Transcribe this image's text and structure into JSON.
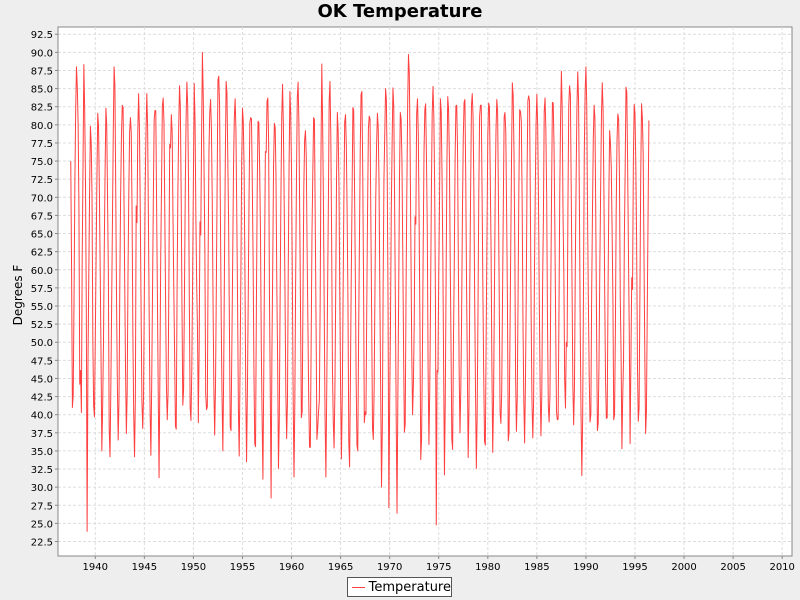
{
  "chart_data": {
    "type": "line",
    "title": "OK Temperature",
    "xlabel": "",
    "ylabel": "Degrees F",
    "xlim": [
      1936.2,
      2011
    ],
    "ylim": [
      20.5,
      93.5
    ],
    "x_ticks": [
      "1940",
      "1945",
      "1950",
      "1955",
      "1960",
      "1965",
      "1970",
      "1975",
      "1980",
      "1985",
      "1990",
      "1995",
      "2000",
      "2005",
      "2010"
    ],
    "y_ticks": [
      "22.5",
      "25.0",
      "27.5",
      "30.0",
      "32.5",
      "35.0",
      "37.5",
      "40.0",
      "42.5",
      "45.0",
      "47.5",
      "50.0",
      "52.5",
      "55.0",
      "57.5",
      "60.0",
      "62.5",
      "65.0",
      "67.5",
      "70.0",
      "72.5",
      "75.0",
      "77.5",
      "80.0",
      "82.5",
      "85.0",
      "87.5",
      "90.0",
      "92.5"
    ],
    "grid": true,
    "legend_position": "bottom",
    "series": [
      {
        "name": "Temperature",
        "color": "#ff4040",
        "start_year": 1937.5,
        "step_years": 0.0833333,
        "values": [
          75.0,
          60.1,
          41.0,
          42.7,
          55.9,
          71.8,
          81.8,
          88.0,
          85.2,
          80.1,
          68.7,
          44.2,
          46.1,
          40.3,
          61.5,
          74.5,
          88.3,
          82.3,
          72.2,
          55.3,
          23.9,
          46.4,
          58.7,
          70.1,
          79.8,
          77.6,
          70.2,
          50.2,
          41.2,
          39.7,
          50.6,
          61.8,
          72.6,
          81.6,
          79.7,
          70.6,
          60.1,
          48.4,
          35.0,
          41.1,
          49.9,
          63.0,
          73.8,
          82.3,
          79.9,
          69.7,
          59.3,
          38.1,
          34.2,
          43.4,
          55.1,
          66.9,
          79.2,
          88.0,
          85.4,
          71.1,
          55.7,
          44.0,
          36.5,
          42.1,
          58.1,
          70.4,
          78.5,
          82.7,
          82.4,
          71.2,
          57.9,
          46.3,
          37.4,
          42.9,
          59.3,
          70.7,
          79.0,
          81.0,
          78.9,
          67.3,
          50.7,
          40.0,
          34.2,
          42.3,
          68.8,
          66.5,
          79.2,
          84.3,
          79.3,
          68.2,
          54.7,
          42.0,
          38.1,
          42.5,
          57.0,
          70.8,
          78.8,
          84.3,
          79.8,
          66.4,
          52.5,
          40.7,
          34.4,
          44.3,
          57.1,
          70.1,
          80.7,
          82.0,
          81.9,
          68.8,
          55.7,
          42.5,
          31.3,
          45.3,
          61.4,
          71.7,
          82.6,
          83.7,
          80.3,
          67.8,
          55.5,
          43.9,
          39.3,
          43.0,
          58.5,
          77.3,
          76.8,
          81.4,
          79.0,
          67.5,
          57.4,
          48.5,
          38.4,
          38.0,
          56.8,
          70.9,
          79.5,
          85.4,
          82.5,
          70.8,
          55.1,
          41.3,
          43.4,
          56.1,
          70.5,
          80.6,
          85.9,
          82.7,
          72.3,
          55.8,
          41.0,
          39.2,
          46.1,
          58.5,
          72.7,
          85.7,
          80.5,
          67.4,
          57.9,
          51.5,
          38.9,
          49.0,
          66.6,
          64.8,
          78.7,
          90.0,
          84.1,
          73.7,
          62.6,
          43.0,
          40.7,
          41.1,
          61.8,
          76.3,
          81.7,
          83.5,
          79.6,
          70.0,
          55.6,
          43.8,
          37.2,
          43.9,
          57.2,
          71.7,
          86.2,
          86.7,
          82.6,
          67.6,
          53.1,
          42.3,
          35.0,
          45.6,
          61.1,
          75.1,
          86.0,
          84.5,
          75.7,
          66.8,
          52.5,
          38.3,
          37.8,
          49.2,
          61.0,
          73.8,
          80.9,
          83.6,
          79.3,
          67.9,
          55.5,
          40.8,
          34.3,
          46.3,
          58.7,
          74.5,
          82.3,
          80.4,
          73.7,
          59.6,
          43.6,
          33.5,
          43.0,
          55.6,
          69.6,
          80.3,
          81.0,
          80.8,
          72.0,
          61.2,
          46.2,
          36.0,
          35.6,
          54.8,
          70.9,
          80.5,
          80.3,
          74.1,
          65.1,
          49.5,
          39.5,
          31.1,
          45.2,
          62.0,
          76.3,
          76.2,
          83.2,
          83.7,
          77.3,
          56.4,
          43.1,
          28.5,
          48.5,
          60.7,
          74.5,
          80.2,
          79.6,
          72.7,
          57.7,
          47.2,
          32.6,
          39.2,
          55.6,
          69.7,
          81.1,
          85.6,
          79.9,
          69.2,
          56.8,
          43.5,
          36.7,
          41.8,
          60.4,
          74.5,
          84.6,
          81.5,
          73.2,
          58.2,
          42.2,
          31.4,
          41.7,
          58.1,
          72.3,
          83.6,
          85.9,
          80.2,
          67.6,
          54.2,
          39.6,
          40.4,
          56.3,
          71.2,
          77.9,
          79.2,
          75.7,
          63.2,
          52.7,
          42.1,
          35.5,
          35.5,
          50.2,
          65.0,
          73.4,
          81.0,
          80.7,
          66.5,
          52.4,
          36.6,
          38.1,
          40.4,
          42.0,
          55.6,
          75.9,
          88.4,
          80.2,
          69.1,
          54.0,
          39.6,
          31.4,
          42.8,
          56.3,
          68.4,
          83.2,
          86.0,
          78.6,
          64.9,
          46.4,
          39.2,
          35.4,
          43.1,
          56.9,
          72.3,
          81.7,
          79.1,
          71.5,
          56.7,
          43.3,
          33.9,
          42.1,
          55.9,
          69.8,
          80.4,
          81.4,
          77.1,
          67.6,
          55.2,
          36.3,
          32.8,
          45.1,
          58.8,
          70.1,
          82.4,
          82.0,
          71.8,
          59.3,
          44.8,
          35.8,
          35.0,
          50.6,
          63.7,
          76.5,
          84.2,
          84.6,
          74.3,
          59.1,
          38.9,
          40.4,
          40.0,
          55.1,
          68.5,
          79.5,
          81.2,
          80.8,
          66.7,
          53.3,
          38.1,
          36.6,
          43.7,
          57.3,
          70.0,
          77.3,
          81.6,
          79.5,
          71.7,
          56.4,
          43.3,
          30.0,
          37.9,
          57.8,
          72.5,
          78.8,
          85.0,
          83.4,
          73.2,
          55.4,
          27.2,
          41.5,
          52.7,
          68.4,
          77.6,
          85.1,
          82.5,
          69.7,
          55.1,
          39.2,
          26.4,
          42.3,
          56.4,
          72.6,
          81.7,
          80.8,
          75.1,
          62.5,
          49.0,
          37.6,
          38.7,
          56.8,
          70.9,
          82.8,
          89.7,
          87.1,
          76.6,
          62.7,
          48.7,
          40.0,
          44.1,
          52.5,
          67.3,
          66.3,
          81.5,
          83.6,
          78.8,
          66.6,
          52.4,
          33.8,
          36.6,
          47.6,
          63.1,
          76.3,
          82.1,
          82.9,
          75.3,
          65.4,
          46.0,
          35.9,
          43.3,
          55.7,
          70.7,
          81.6,
          85.3,
          81.1,
          71.6,
          55.3,
          24.8,
          46.1,
          45.9,
          59.2,
          69.9,
          83.6,
          81.9,
          73.3,
          61.9,
          46.4,
          31.7,
          42.2,
          58.8,
          74.5,
          83.9,
          82.2,
          75.7,
          61.9,
          49.9,
          36.6,
          35.2,
          50.3,
          60.5,
          75.1,
          82.6,
          82.7,
          76.4,
          60.6,
          45.7,
          37.5,
          43.5,
          53.9,
          68.1,
          78.2,
          83.1,
          83.5,
          73.0,
          58.2,
          46.1,
          34.1,
          41.1,
          58.2,
          71.0,
          82.7,
          84.3,
          81.0,
          70.4,
          55.4,
          43.1,
          32.6,
          40.0,
          54.3,
          70.8,
          81.2,
          82.7,
          82.7,
          70.4,
          57.0,
          45.6,
          36.3,
          35.8,
          51.1,
          64.8,
          78.4,
          83.0,
          82.5,
          72.9,
          62.8,
          46.7,
          34.8,
          41.7,
          55.3,
          69.6,
          79.1,
          83.5,
          81.9,
          69.7,
          56.1,
          40.4,
          38.8,
          43.1,
          56.1,
          69.4,
          81.1,
          81.7,
          79.0,
          68.2,
          55.6,
          36.4,
          37.5,
          49.2,
          62.3,
          75.1,
          85.8,
          84.1,
          76.5,
          63.3,
          45.2,
          37.7,
          42.2,
          56.1,
          71.4,
          82.1,
          81.8,
          80.5,
          69.4,
          53.0,
          42.3,
          36.1,
          44.1,
          56.3,
          72.9,
          83.3,
          84.0,
          83.3,
          70.0,
          53.8,
          42.0,
          36.8,
          41.7,
          59.0,
          70.1,
          80.1,
          84.2,
          79.9,
          69.3,
          55.2,
          43.8,
          37.1,
          42.6,
          57.7,
          67.4,
          81.9,
          83.7,
          79.4,
          70.0,
          52.7,
          41.2,
          39.0,
          42.7,
          56.9,
          71.1,
          83.1,
          83.0,
          76.9,
          65.6,
          52.5,
          40.4,
          39.3,
          39.4,
          53.5,
          70.6,
          80.8,
          87.4,
          82.1,
          67.6,
          59.4,
          44.8,
          40.9,
          50.0,
          49.4,
          68.9,
          82.6,
          85.4,
          84.1,
          71.2,
          58.0,
          44.0,
          38.6,
          44.1,
          60.5,
          72.3,
          82.6,
          87.3,
          83.3,
          69.1,
          52.3,
          40.1,
          31.6,
          39.5,
          57.5,
          76.1,
          84.5,
          88.0,
          82.9,
          67.3,
          55.5,
          45.2,
          39.0,
          40.0,
          56.4,
          67.9,
          78.1,
          82.7,
          80.9,
          67.9,
          52.4,
          37.8,
          38.8,
          47.3,
          60.4,
          71.2,
          81.4,
          85.8,
          81.9,
          70.6,
          56.3,
          44.6,
          39.5,
          39.6,
          56.6,
          69.7,
          79.2,
          77.5,
          74.1,
          65.4,
          55.7,
          39.3,
          40.0,
          51.4,
          68.2,
          77.7,
          81.5,
          80.8,
          72.6,
          56.1,
          48.3,
          35.3,
          42.6,
          47.6,
          64.3,
          74.1,
          85.2,
          84.5,
          74.4,
          62.3,
          51.2,
          36.0,
          47.4,
          58.9,
          57.3,
          74.9,
          82.8,
          81.6,
          74.7,
          63.7,
          47.1,
          39.1,
          40.9,
          56.2,
          72.7,
          82.9,
          81.0,
          76.0,
          62.1,
          48.3,
          37.4,
          40.5,
          54.4,
          67.8,
          80.6
        ]
      }
    ]
  }
}
